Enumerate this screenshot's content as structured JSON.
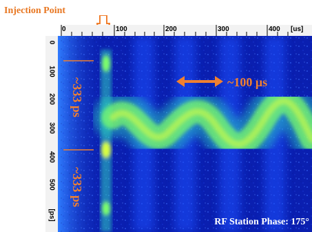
{
  "injection_label": "Injection Point",
  "x_ticks": [
    "0",
    "100",
    "200",
    "300",
    "400",
    "[us]"
  ],
  "y_ticks": [
    "0",
    "100",
    "200",
    "300",
    "400",
    "500",
    "[ps]"
  ],
  "period_label_top": "~333 ps",
  "period_label_bottom": "~333 ps",
  "horizontal_span_label": "~100 μs",
  "rf_phase_label": "RF Station Phase: 175°",
  "colors": {
    "accent": "#f08030",
    "background": "#0a1fb0",
    "signal": "#7dff6a"
  }
}
